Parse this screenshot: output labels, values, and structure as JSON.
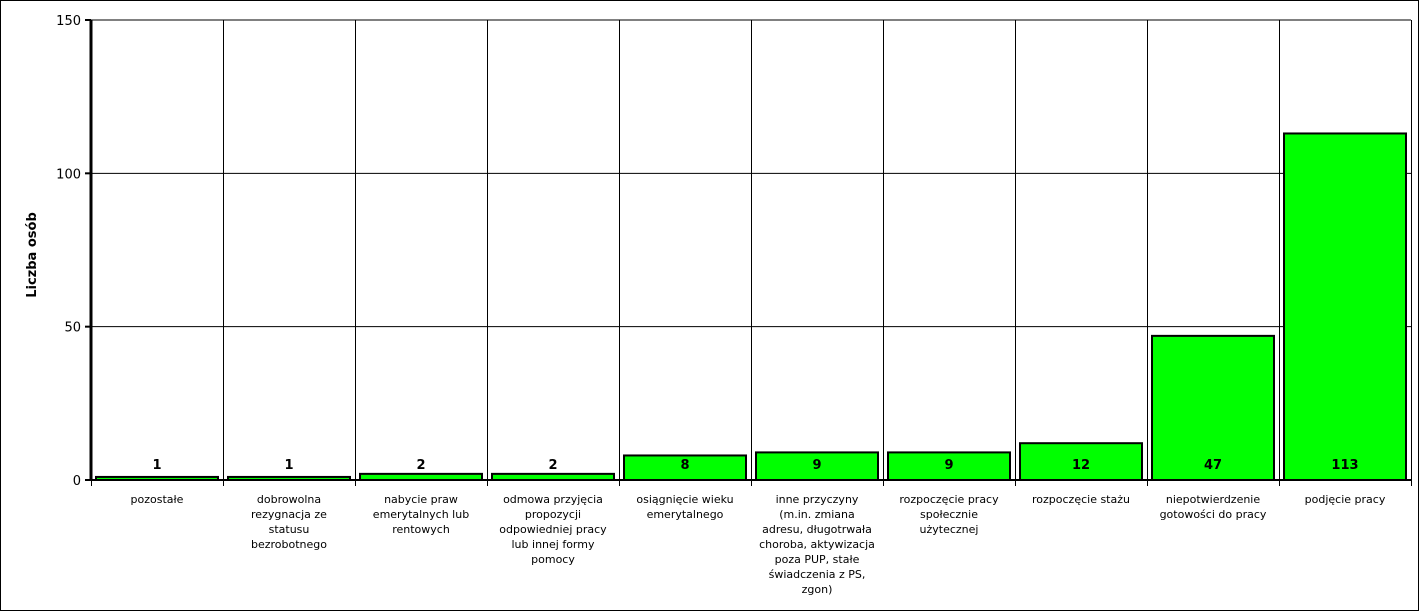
{
  "chart_data": {
    "type": "bar",
    "title": "",
    "xlabel": "",
    "ylabel": "Liczba osób",
    "ylim": [
      0,
      150
    ],
    "yticks": [
      0,
      50,
      100,
      150
    ],
    "grid": true,
    "bar_color": "#00ff00",
    "categories": [
      "pozostałe",
      "dobrowolna rezygnacja ze statusu bezrobotnego",
      "nabycie praw emerytalnych lub rentowych",
      "odmowa przyjęcia propozycji odpowiedniej pracy lub innej formy pomocy",
      "osiągnięcie wieku emerytalnego",
      "inne przyczyny (m.in. zmiana adresu, długotrwała choroba, aktywizacja poza PUP, stałe świadczenia z PS, zgon)",
      "rozpoczęcie pracy społecznie użytecznej",
      "rozpoczęcie stażu",
      "niepotwierdzenie gotowości do pracy",
      "podjęcie pracy"
    ],
    "category_lines": [
      [
        "pozostałe"
      ],
      [
        "dobrowolna",
        "rezygnacja ze",
        "statusu",
        "bezrobotnego"
      ],
      [
        "nabycie praw",
        "emerytalnych lub",
        "rentowych"
      ],
      [
        "odmowa przyjęcia",
        "propozycji",
        "odpowiedniej pracy",
        "lub innej formy",
        "pomocy"
      ],
      [
        "osiągnięcie wieku",
        "emerytalnego"
      ],
      [
        "inne przyczyny",
        "(m.in. zmiana",
        "adresu, długotrwała",
        "choroba, aktywizacja",
        "poza PUP, stałe",
        "świadczenia z PS,",
        "zgon)"
      ],
      [
        "rozpoczęcie pracy",
        "społecznie",
        "użytecznej"
      ],
      [
        "rozpoczęcie stażu"
      ],
      [
        "niepotwierdzenie",
        "gotowości do pracy"
      ],
      [
        "podjęcie pracy"
      ]
    ],
    "values": [
      1,
      1,
      2,
      2,
      8,
      9,
      9,
      12,
      47,
      113
    ]
  }
}
